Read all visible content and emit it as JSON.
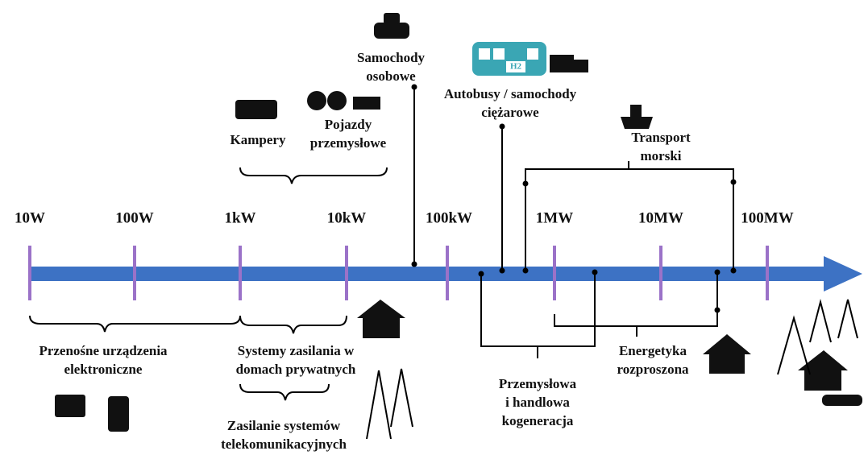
{
  "axis": {
    "ticks": [
      "10W",
      "100W",
      "1kW",
      "10kW",
      "100kW",
      "1MW",
      "10MW",
      "100MW"
    ]
  },
  "applications": [
    {
      "lines": [
        "Samochody",
        "osobowe"
      ]
    },
    {
      "lines": [
        "Autobusy / samochody",
        "ciężarowe"
      ],
      "icon_text": "H2"
    },
    {
      "lines": [
        "Kampery"
      ]
    },
    {
      "lines": [
        "Pojazdy",
        "przemysłowe"
      ]
    },
    {
      "lines": [
        "Transport",
        "morski"
      ]
    },
    {
      "lines": [
        "Przenośne urządzenia",
        "elektroniczne"
      ]
    },
    {
      "lines": [
        "Systemy zasilania w",
        "domach prywatnych"
      ]
    },
    {
      "lines": [
        "Zasilanie systemów",
        "telekomunikacyjnych"
      ]
    },
    {
      "lines": [
        "Przemysłowa",
        "i handlowa",
        "kogeneracja"
      ]
    },
    {
      "lines": [
        "Energetyka",
        "rozproszona"
      ]
    }
  ]
}
